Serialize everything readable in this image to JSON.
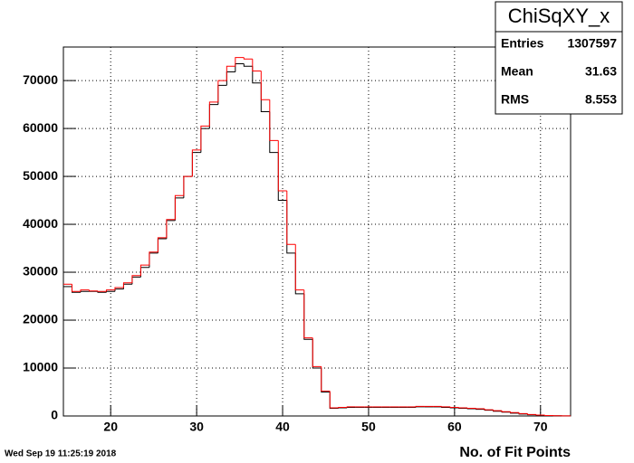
{
  "chart_data": {
    "type": "histogram",
    "title": "ChiSqXY_x",
    "stats": [
      {
        "label": "Entries",
        "value": 1307597
      },
      {
        "label": "Mean",
        "value": 31.63
      },
      {
        "label": "RMS",
        "value": 8.553
      }
    ],
    "xlabel": "No. of Fit Points",
    "date": "Wed Sep 19 11:25:19 2018",
    "bins": [
      14.5,
      15.5,
      16.5,
      17.5,
      18.5,
      19.5,
      20.5,
      21.5,
      22.5,
      23.5,
      24.5,
      25.5,
      26.5,
      27.5,
      28.5,
      29.5,
      30.5,
      31.5,
      32.5,
      33.5,
      34.5,
      35.5,
      36.5,
      37.5,
      38.5,
      39.5,
      40.5,
      41.5,
      42.5,
      43.5,
      44.5,
      45.5,
      46.5,
      47.5,
      48.5,
      49.5,
      50.5,
      51.5,
      52.5,
      53.5,
      54.5,
      55.5,
      56.5,
      57.5,
      58.5,
      59.5,
      60.5,
      61.5,
      62.5,
      63.5,
      64.5,
      65.5,
      66.5,
      67.5,
      68.5,
      69.5,
      70.5,
      71.5,
      72.5,
      73.5
    ],
    "series": [
      {
        "color": "#000000",
        "values": [
          27000,
          25800,
          26000,
          26000,
          25800,
          26000,
          26500,
          27500,
          29000,
          31000,
          34000,
          37000,
          40800,
          45500,
          50000,
          55000,
          60000,
          65000,
          69000,
          71800,
          73500,
          73000,
          69500,
          63500,
          55000,
          45000,
          34000,
          25500,
          16000,
          10000,
          5000,
          1600,
          1700,
          1800,
          1800,
          1800,
          1800,
          1800,
          1800,
          1800,
          1800,
          1900,
          1900,
          1900,
          1800,
          1700,
          1600,
          1500,
          1400,
          1200,
          1000,
          800,
          600,
          400,
          250,
          150,
          80,
          40,
          20
        ]
      },
      {
        "color": "#ff0000",
        "values": [
          27500,
          26000,
          26300,
          26100,
          26000,
          26300,
          26800,
          27800,
          29300,
          31500,
          34200,
          37200,
          41000,
          46000,
          50000,
          55500,
          60500,
          65500,
          70000,
          73000,
          74800,
          74500,
          72000,
          66000,
          57500,
          47000,
          35800,
          26300,
          16300,
          10300,
          5200,
          1700,
          1800,
          1900,
          1900,
          1900,
          1900,
          1900,
          1900,
          1900,
          1900,
          2000,
          2000,
          2000,
          1900,
          1800,
          1700,
          1600,
          1500,
          1300,
          1100,
          900,
          700,
          500,
          300,
          180,
          100,
          50,
          25
        ]
      }
    ],
    "xlim": [
      14.5,
      73.5
    ],
    "ylim": [
      0,
      77000
    ],
    "xticks": [
      20,
      30,
      40,
      50,
      60,
      70
    ],
    "yticks": [
      0,
      10000,
      20000,
      30000,
      40000,
      50000,
      60000,
      70000
    ],
    "grid": true
  }
}
